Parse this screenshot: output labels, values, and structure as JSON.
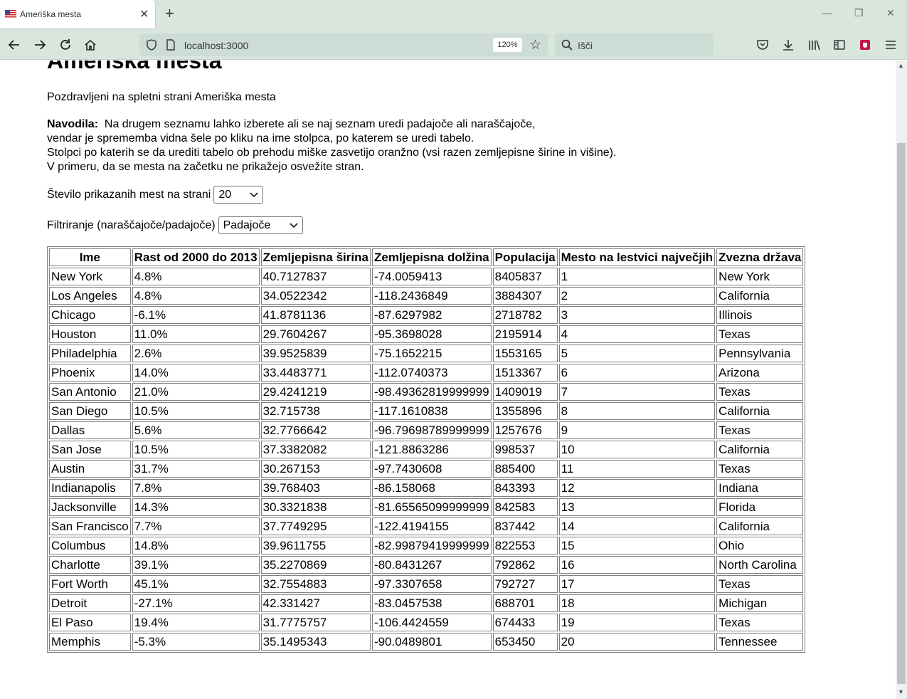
{
  "browser": {
    "tab_title": "Ameriška mesta",
    "url": "localhost:3000",
    "zoom": "120%",
    "search_placeholder": "Išči"
  },
  "page": {
    "heading": "Ameriška mesta",
    "greeting": "Pozdravljeni na spletni strani Ameriška mesta",
    "instructions_label": "Navodila:",
    "instructions_lines": [
      "Na drugem seznamu lahko izberete ali se naj seznam uredi padajoče ali naraščajoče,",
      "vendar je sprememba vidna šele po kliku na ime stolpca, po katerem se uredi tabelo.",
      "Stolpci po katerih se da urediti tabelo ob prehodu miške zasvetijo oranžno (vsi razen zemljepisne širine in višine).",
      "V primeru, da se mesta na začetku ne prikažejo osvežite stran."
    ],
    "count_label": "Število prikazanih mest na strani",
    "count_value": "20",
    "sort_label": "Filtriranje (naraščajoče/padajoče)",
    "sort_value": "Padajoče"
  },
  "table": {
    "columns": [
      "Ime",
      "Rast od 2000 do 2013",
      "Zemljepisna širina",
      "Zemljepisna dolžina",
      "Populacija",
      "Mesto na lestvici največjih",
      "Zvezna država"
    ],
    "rows": [
      [
        "New York",
        "4.8%",
        "40.7127837",
        "-74.0059413",
        "8405837",
        "1",
        "New York"
      ],
      [
        "Los Angeles",
        "4.8%",
        "34.0522342",
        "-118.2436849",
        "3884307",
        "2",
        "California"
      ],
      [
        "Chicago",
        "-6.1%",
        "41.8781136",
        "-87.6297982",
        "2718782",
        "3",
        "Illinois"
      ],
      [
        "Houston",
        "11.0%",
        "29.7604267",
        "-95.3698028",
        "2195914",
        "4",
        "Texas"
      ],
      [
        "Philadelphia",
        "2.6%",
        "39.9525839",
        "-75.1652215",
        "1553165",
        "5",
        "Pennsylvania"
      ],
      [
        "Phoenix",
        "14.0%",
        "33.4483771",
        "-112.0740373",
        "1513367",
        "6",
        "Arizona"
      ],
      [
        "San Antonio",
        "21.0%",
        "29.4241219",
        "-98.49362819999999",
        "1409019",
        "7",
        "Texas"
      ],
      [
        "San Diego",
        "10.5%",
        "32.715738",
        "-117.1610838",
        "1355896",
        "8",
        "California"
      ],
      [
        "Dallas",
        "5.6%",
        "32.7766642",
        "-96.79698789999999",
        "1257676",
        "9",
        "Texas"
      ],
      [
        "San Jose",
        "10.5%",
        "37.3382082",
        "-121.8863286",
        "998537",
        "10",
        "California"
      ],
      [
        "Austin",
        "31.7%",
        "30.267153",
        "-97.7430608",
        "885400",
        "11",
        "Texas"
      ],
      [
        "Indianapolis",
        "7.8%",
        "39.768403",
        "-86.158068",
        "843393",
        "12",
        "Indiana"
      ],
      [
        "Jacksonville",
        "14.3%",
        "30.3321838",
        "-81.65565099999999",
        "842583",
        "13",
        "Florida"
      ],
      [
        "San Francisco",
        "7.7%",
        "37.7749295",
        "-122.4194155",
        "837442",
        "14",
        "California"
      ],
      [
        "Columbus",
        "14.8%",
        "39.9611755",
        "-82.99879419999999",
        "822553",
        "15",
        "Ohio"
      ],
      [
        "Charlotte",
        "39.1%",
        "35.2270869",
        "-80.8431267",
        "792862",
        "16",
        "North Carolina"
      ],
      [
        "Fort Worth",
        "45.1%",
        "32.7554883",
        "-97.3307658",
        "792727",
        "17",
        "Texas"
      ],
      [
        "Detroit",
        "-27.1%",
        "42.331427",
        "-83.0457538",
        "688701",
        "18",
        "Michigan"
      ],
      [
        "El Paso",
        "19.4%",
        "31.7775757",
        "-106.4424559",
        "674433",
        "19",
        "Texas"
      ],
      [
        "Memphis",
        "-5.3%",
        "35.1495343",
        "-90.0489801",
        "653450",
        "20",
        "Tennessee"
      ]
    ]
  }
}
